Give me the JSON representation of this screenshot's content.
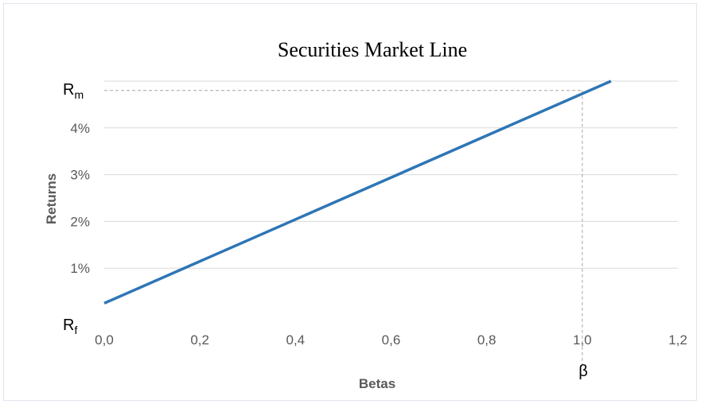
{
  "chart_data": {
    "type": "line",
    "title": "Securities Market Line",
    "xlabel": "Betas",
    "ylabel": "Returns",
    "xlim": [
      0,
      1.2
    ],
    "ylim": [
      0,
      0.05
    ],
    "x_ticks": [
      "0,0",
      "0,2",
      "0,4",
      "0,6",
      "0,8",
      "1,0",
      "1,2"
    ],
    "y_ticks": [
      "1%",
      "2%",
      "3%",
      "4%"
    ],
    "grid": "horizontal",
    "legend": "none",
    "series": [
      {
        "x": [
          0.0,
          1.06
        ],
        "y": [
          0.0025,
          0.05
        ],
        "color": "#2e75b6"
      }
    ],
    "annotations": {
      "rm": {
        "base": "R",
        "sub": "m",
        "y": 0.048
      },
      "rf": {
        "base": "R",
        "sub": "f"
      },
      "beta": {
        "label": "β",
        "x": 1.0
      }
    },
    "grid_color": "#d9d9d9",
    "guide_color": "#a6a6a6"
  }
}
